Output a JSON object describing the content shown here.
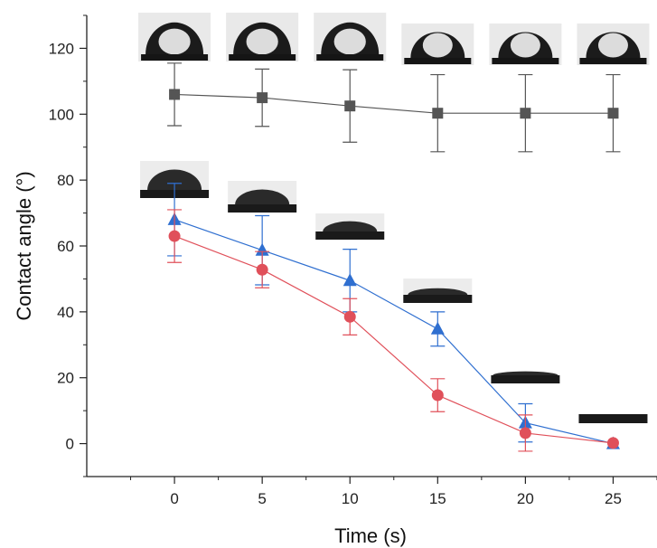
{
  "chart_data": {
    "type": "line",
    "title": "",
    "xlabel": "Time (s)",
    "ylabel": "Contact angle (°)",
    "xlim": [
      -5,
      27.5
    ],
    "ylim": [
      -10,
      130
    ],
    "x_ticks": [
      0,
      5,
      10,
      15,
      20,
      25
    ],
    "y_ticks": [
      0,
      20,
      40,
      60,
      80,
      100,
      120
    ],
    "grid": false,
    "legend": "none",
    "series": [
      {
        "marker": "square",
        "color": "#555555",
        "x": [
          0,
          5,
          10,
          15,
          20,
          25
        ],
        "values": [
          106,
          105,
          102.5,
          100.3,
          100.3,
          100.3
        ],
        "error": [
          9.5,
          8.7,
          11,
          11.7,
          11.7,
          11.7
        ]
      },
      {
        "marker": "triangle",
        "color": "#2f6fd0",
        "x": [
          0,
          5,
          10,
          15,
          20,
          25
        ],
        "values": [
          68,
          58.7,
          49.5,
          34.8,
          6.3,
          0
        ],
        "error": [
          11,
          10.5,
          9.5,
          5.2,
          5.8,
          0
        ]
      },
      {
        "marker": "circle",
        "color": "#e0505a",
        "x": [
          0,
          5,
          10,
          15,
          20,
          25
        ],
        "values": [
          63,
          52.8,
          38.5,
          14.7,
          3.2,
          0.2
        ],
        "error": [
          8,
          5.5,
          5.5,
          5,
          5.5,
          0
        ]
      }
    ],
    "droplet_images": {
      "top_row": [
        {
          "x": 0,
          "shape": "dome-high"
        },
        {
          "x": 5,
          "shape": "dome-high"
        },
        {
          "x": 10,
          "shape": "dome-high"
        },
        {
          "x": 15,
          "shape": "dome-mid"
        },
        {
          "x": 20,
          "shape": "dome-mid"
        },
        {
          "x": 25,
          "shape": "dome-mid"
        }
      ],
      "bottom_row": [
        {
          "x": 0,
          "shape": "cap-large"
        },
        {
          "x": 5,
          "shape": "cap-medium"
        },
        {
          "x": 10,
          "shape": "cap-small"
        },
        {
          "x": 15,
          "shape": "cap-flat"
        },
        {
          "x": 20,
          "shape": "film"
        },
        {
          "x": 25,
          "shape": "flat"
        }
      ]
    }
  }
}
